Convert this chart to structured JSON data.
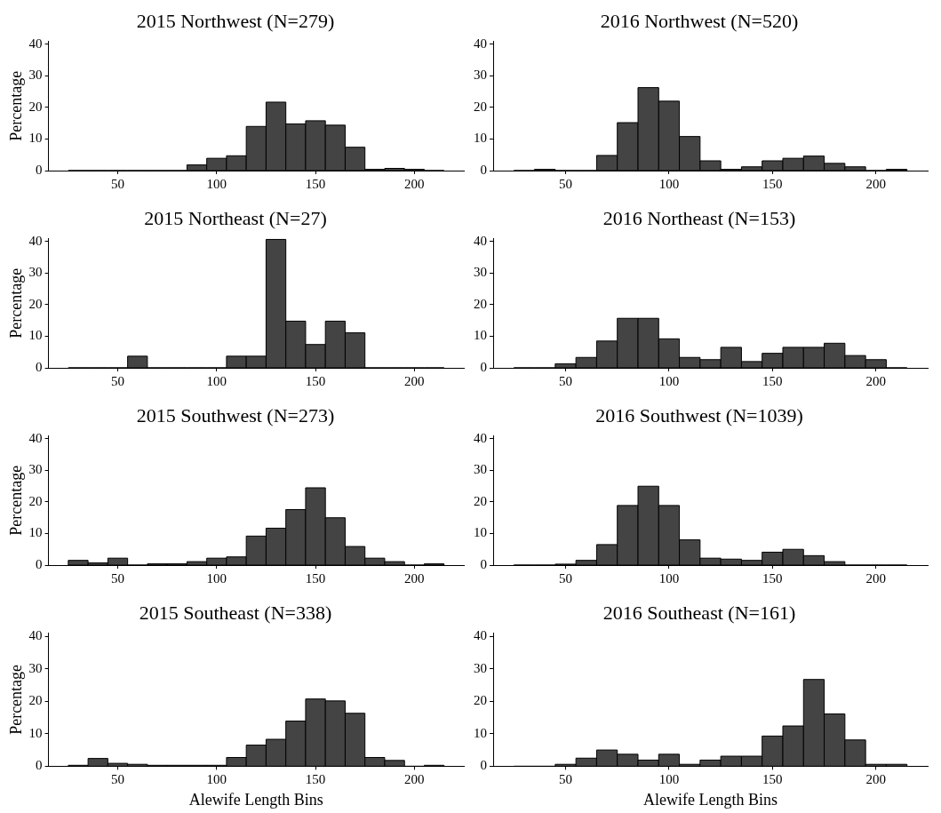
{
  "chart_data": [
    {
      "type": "histogram",
      "title": "2015 Northwest (N=279)",
      "ylabel": "Percentage",
      "bins": [
        25,
        35,
        45,
        55,
        65,
        75,
        85,
        95,
        105,
        115,
        125,
        135,
        145,
        155,
        165,
        175,
        185,
        195,
        205,
        215
      ],
      "values": [
        0,
        0,
        0,
        0,
        0,
        0,
        1.8,
        3.9,
        4.7,
        14,
        21.7,
        14.8,
        15.8,
        14.4,
        7.4,
        0.4,
        0.7,
        0.4,
        0
      ],
      "color": "#444444",
      "xlim": [
        15,
        225
      ],
      "xticks": [
        50,
        100,
        150,
        200
      ],
      "ylim": [
        0,
        41
      ],
      "yticks": [
        0,
        10,
        20,
        30,
        40
      ]
    },
    {
      "type": "histogram",
      "title": "2016 Northwest (N=520)",
      "bins": [
        25,
        35,
        45,
        55,
        65,
        75,
        85,
        95,
        105,
        115,
        125,
        135,
        145,
        155,
        165,
        175,
        185,
        195,
        205,
        215
      ],
      "values": [
        0,
        0.4,
        0,
        0,
        4.8,
        15.2,
        26.3,
        22,
        10.8,
        3.1,
        0.4,
        1.2,
        3.1,
        3.9,
        4.6,
        2.3,
        1.2,
        0,
        0.4
      ],
      "color": "#444444",
      "xlim": [
        15,
        225
      ],
      "xticks": [
        50,
        100,
        150,
        200
      ],
      "ylim": [
        0,
        41
      ],
      "yticks": [
        0,
        10,
        20,
        30,
        40
      ]
    },
    {
      "type": "histogram",
      "title": "2015 Northeast (N=27)",
      "ylabel": "Percentage",
      "bins": [
        25,
        35,
        45,
        55,
        65,
        75,
        85,
        95,
        105,
        115,
        125,
        135,
        145,
        155,
        165,
        175,
        185,
        195,
        205,
        215
      ],
      "values": [
        0,
        0,
        0,
        3.7,
        0,
        0,
        0,
        0,
        3.7,
        3.7,
        40.7,
        14.8,
        7.4,
        14.8,
        11.1,
        0,
        0,
        0,
        0
      ],
      "color": "#444444",
      "xlim": [
        15,
        225
      ],
      "xticks": [
        50,
        100,
        150,
        200
      ],
      "ylim": [
        0,
        41
      ],
      "yticks": [
        0,
        10,
        20,
        30,
        40
      ]
    },
    {
      "type": "histogram",
      "title": "2016 Northeast (N=153)",
      "bins": [
        25,
        35,
        45,
        55,
        65,
        75,
        85,
        95,
        105,
        115,
        125,
        135,
        145,
        155,
        165,
        175,
        185,
        195,
        205,
        215
      ],
      "values": [
        0,
        0,
        1.3,
        3.3,
        8.5,
        15.7,
        15.7,
        9.2,
        3.3,
        2.6,
        6.5,
        2,
        4.6,
        6.5,
        6.5,
        7.8,
        3.9,
        2.6,
        0
      ],
      "color": "#444444",
      "xlim": [
        15,
        225
      ],
      "xticks": [
        50,
        100,
        150,
        200
      ],
      "ylim": [
        0,
        41
      ],
      "yticks": [
        0,
        10,
        20,
        30,
        40
      ]
    },
    {
      "type": "histogram",
      "title": "2015 Southwest (N=273)",
      "ylabel": "Percentage",
      "bins": [
        25,
        35,
        45,
        55,
        65,
        75,
        85,
        95,
        105,
        115,
        125,
        135,
        145,
        155,
        165,
        175,
        185,
        195,
        205,
        215
      ],
      "values": [
        1.5,
        0.7,
        2.2,
        0,
        0.4,
        0.4,
        1.1,
        2.2,
        2.6,
        9.2,
        11.7,
        17.6,
        24.5,
        15,
        5.9,
        2.2,
        1.1,
        0,
        0.4
      ],
      "color": "#444444",
      "xlim": [
        15,
        225
      ],
      "xticks": [
        50,
        100,
        150,
        200
      ],
      "ylim": [
        0,
        41
      ],
      "yticks": [
        0,
        10,
        20,
        30,
        40
      ]
    },
    {
      "type": "histogram",
      "title": "2016 Southwest (N=1039)",
      "bins": [
        25,
        35,
        45,
        55,
        65,
        75,
        85,
        95,
        105,
        115,
        125,
        135,
        145,
        155,
        165,
        175,
        185,
        195,
        205,
        215
      ],
      "values": [
        0,
        0,
        0.3,
        1.5,
        6.5,
        18.9,
        25,
        18.9,
        8,
        2.2,
        1.9,
        1.5,
        4.1,
        5,
        3,
        1.1,
        0,
        0,
        0
      ],
      "color": "#444444",
      "xlim": [
        15,
        225
      ],
      "xticks": [
        50,
        100,
        150,
        200
      ],
      "ylim": [
        0,
        41
      ],
      "yticks": [
        0,
        10,
        20,
        30,
        40
      ]
    },
    {
      "type": "histogram",
      "title": "2015 Southeast (N=338)",
      "ylabel": "Percentage",
      "xlabel": "Alewife Length Bins",
      "bins": [
        25,
        35,
        45,
        55,
        65,
        75,
        85,
        95,
        105,
        115,
        125,
        135,
        145,
        155,
        165,
        175,
        185,
        195,
        205,
        215
      ],
      "values": [
        0.3,
        2.4,
        0.9,
        0.6,
        0.3,
        0.3,
        0.3,
        0.3,
        2.7,
        6.5,
        8.3,
        13.9,
        20.7,
        20.1,
        16.3,
        2.7,
        1.8,
        0,
        0.3
      ],
      "color": "#444444",
      "xlim": [
        15,
        225
      ],
      "xticks": [
        50,
        100,
        150,
        200
      ],
      "ylim": [
        0,
        41
      ],
      "yticks": [
        0,
        10,
        20,
        30,
        40
      ]
    },
    {
      "type": "histogram",
      "title": "2016 Southeast (N=161)",
      "xlabel": "Alewife Length Bins",
      "bins": [
        25,
        35,
        45,
        55,
        65,
        75,
        85,
        95,
        105,
        115,
        125,
        135,
        145,
        155,
        165,
        175,
        185,
        195,
        205,
        215
      ],
      "values": [
        0,
        0,
        0.6,
        2.5,
        5,
        3.7,
        1.9,
        3.7,
        0.6,
        1.9,
        3.1,
        3.1,
        9.3,
        12.4,
        26.7,
        16.1,
        8.1,
        0.6,
        0.6
      ],
      "color": "#444444",
      "xlim": [
        15,
        225
      ],
      "xticks": [
        50,
        100,
        150,
        200
      ],
      "ylim": [
        0,
        41
      ],
      "yticks": [
        0,
        10,
        20,
        30,
        40
      ]
    }
  ]
}
